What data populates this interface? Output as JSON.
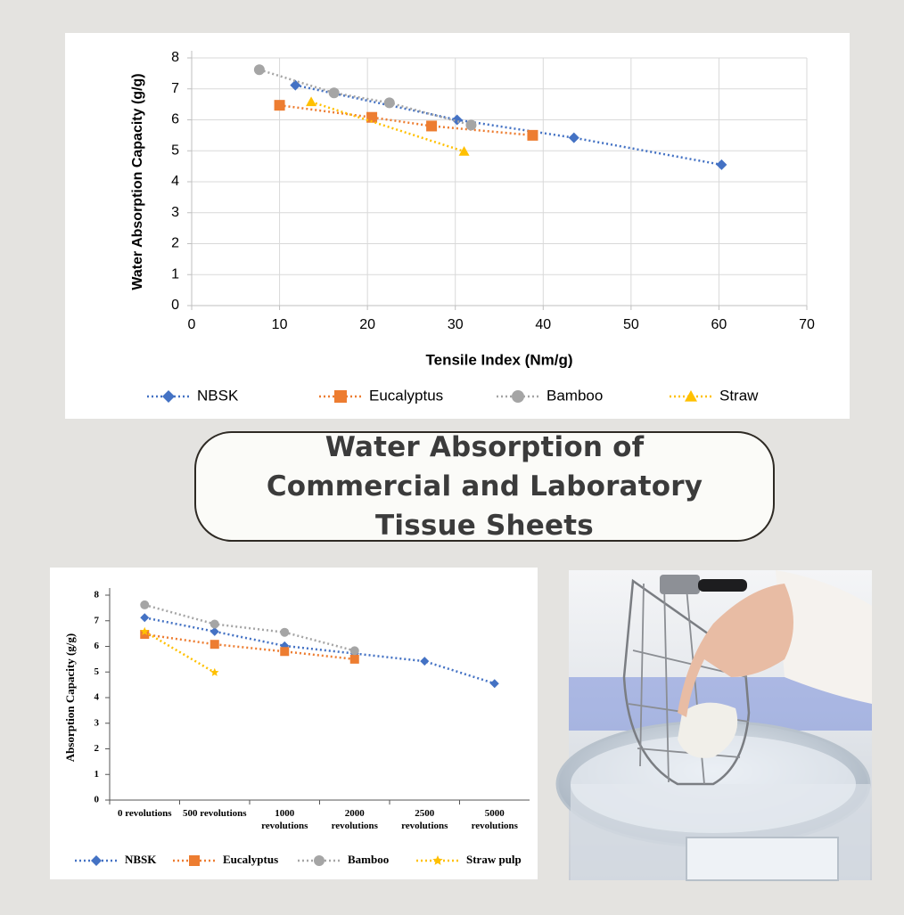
{
  "chart_data": [
    {
      "type": "line",
      "xlabel": "Tensile Index (Nm/g)",
      "ylabel": "Water Absorption Capacity (g/g)",
      "xlim": [
        0,
        70
      ],
      "xticks": [
        0,
        10,
        20,
        30,
        40,
        50,
        60,
        70
      ],
      "ylim": [
        0,
        8
      ],
      "yticks": [
        0,
        1,
        2,
        3,
        4,
        5,
        6,
        7,
        8
      ],
      "grid": true,
      "legend": "bottom",
      "series": [
        {
          "name": "NBSK",
          "color": "#4472c4",
          "marker": "diamond",
          "x": [
            11.8,
            30.2,
            43.5,
            60.3
          ],
          "values": [
            7.12,
            6.0,
            5.42,
            4.55
          ]
        },
        {
          "name": "Eucalyptus",
          "color": "#ed7d31",
          "marker": "square",
          "x": [
            10,
            20.5,
            27.3,
            38.8
          ],
          "values": [
            6.47,
            6.08,
            5.8,
            5.5
          ]
        },
        {
          "name": "Bamboo",
          "color": "#a5a5a5",
          "marker": "circle",
          "x": [
            7.7,
            16.2,
            22.5,
            31.8
          ],
          "values": [
            7.62,
            6.87,
            6.55,
            5.83
          ]
        },
        {
          "name": "Straw",
          "color": "#ffc000",
          "marker": "triangle",
          "x": [
            13.6,
            31
          ],
          "values": [
            6.58,
            4.98
          ]
        }
      ]
    },
    {
      "type": "line",
      "ylabel": "Absorption Capacity (g/g)",
      "categories": [
        "0 revolutions",
        "500 revolutions",
        "1000 revolutions",
        "2000 revolutions",
        "2500 revolutions",
        "5000 revolutions"
      ],
      "ylim": [
        0,
        8
      ],
      "yticks": [
        0,
        1,
        2,
        3,
        4,
        5,
        6,
        7,
        8
      ],
      "grid": false,
      "legend": "bottom",
      "series": [
        {
          "name": "NBSK",
          "color": "#4472c4",
          "marker": "diamond",
          "values": [
            7.12,
            6.58,
            6.02,
            5.72,
            5.42,
            4.55
          ]
        },
        {
          "name": "Eucalyptus",
          "color": "#ed7d31",
          "marker": "square",
          "values": [
            6.47,
            6.08,
            5.8,
            5.5,
            null,
            null
          ]
        },
        {
          "name": "Bamboo",
          "color": "#a5a5a5",
          "marker": "circle",
          "values": [
            7.62,
            6.87,
            6.55,
            5.83,
            null,
            null
          ]
        },
        {
          "name": "Straw pulp",
          "color": "#ffc000",
          "marker": "star",
          "values": [
            6.58,
            4.98,
            null,
            null,
            null,
            null
          ]
        }
      ]
    }
  ],
  "banner": {
    "title": "Water Absorption of Commercial and Laboratory Tissue Sheets"
  }
}
